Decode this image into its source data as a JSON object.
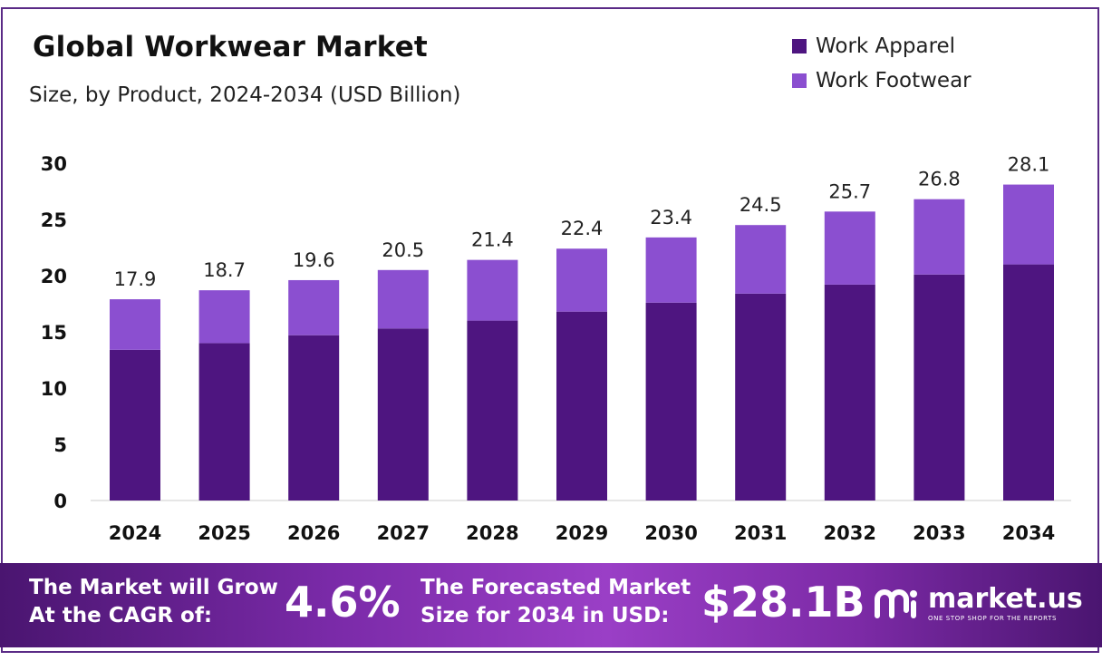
{
  "header": {
    "title": "Global Workwear Market",
    "subtitle": "Size, by Product, 2024-2034 (USD Billion)"
  },
  "legend": [
    {
      "label": "Work Apparel",
      "color": "#4e1580"
    },
    {
      "label": "Work Footwear",
      "color": "#8b4fd0"
    }
  ],
  "chart_data": {
    "type": "bar",
    "stacked": true,
    "categories": [
      "2024",
      "2025",
      "2026",
      "2027",
      "2028",
      "2029",
      "2030",
      "2031",
      "2032",
      "2033",
      "2034"
    ],
    "series": [
      {
        "name": "Work Apparel",
        "color": "#4e1580",
        "values": [
          13.4,
          14.0,
          14.7,
          15.3,
          16.0,
          16.8,
          17.6,
          18.4,
          19.2,
          20.1,
          21.0
        ]
      },
      {
        "name": "Work Footwear",
        "color": "#8b4fd0",
        "values": [
          4.5,
          4.7,
          4.9,
          5.2,
          5.4,
          5.6,
          5.8,
          6.1,
          6.5,
          6.7,
          7.1
        ]
      }
    ],
    "totals": [
      "17.9",
      "18.7",
      "19.6",
      "20.5",
      "21.4",
      "22.4",
      "23.4",
      "24.5",
      "25.7",
      "26.8",
      "28.1"
    ],
    "yticks": [
      "0",
      "5",
      "10",
      "15",
      "20",
      "25",
      "30"
    ],
    "ylim": [
      0,
      30
    ],
    "grid": false,
    "legend_position": "top-right"
  },
  "banner": {
    "cagr_text_line1": "The Market will Grow",
    "cagr_text_line2": "At the CAGR of:",
    "cagr_value": "4.6%",
    "forecast_text_line1": "The Forecasted Market",
    "forecast_text_line2": "Size for 2034 in USD:",
    "forecast_value": "$28.1B",
    "logo_name": "market.us",
    "logo_tagline": "ONE STOP SHOP FOR THE REPORTS"
  }
}
